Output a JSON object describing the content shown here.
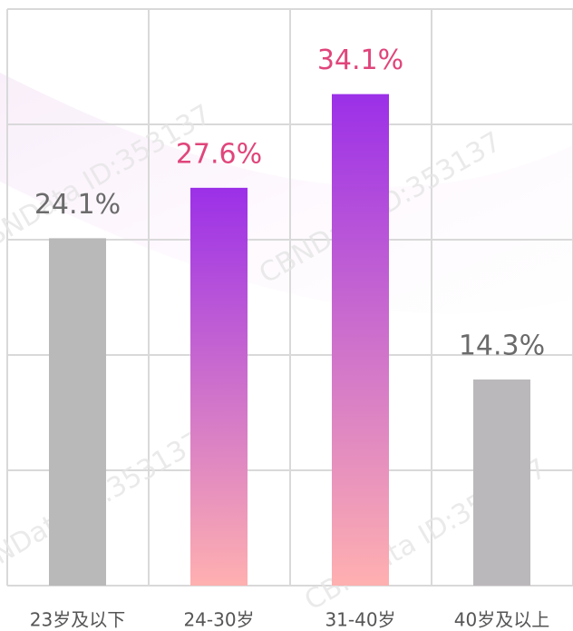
{
  "chart_data": {
    "type": "bar",
    "categories": [
      "23岁及以下",
      "24-30岁",
      "31-40岁",
      "40岁及以上"
    ],
    "values": [
      24.1,
      27.6,
      34.1,
      14.3
    ],
    "value_labels": [
      "24.1%",
      "27.6%",
      "34.1%",
      "14.3%"
    ],
    "bar_colors": [
      [
        "#b9b9b9",
        "#b9b9b9"
      ],
      [
        "#9b30e8",
        "#ffb0b0"
      ],
      [
        "#9b30e8",
        "#ffb0b0"
      ],
      [
        "#bbb8bb",
        "#bbb8bb"
      ]
    ],
    "label_colors": [
      "#6b6b6b",
      "#e0457b",
      "#e0457b",
      "#6b6b6b"
    ],
    "ylim": [
      0,
      40
    ],
    "yticks": [
      0,
      8,
      16,
      24,
      32,
      40
    ],
    "grid": true,
    "watermark": "CBNData ID:353137"
  }
}
